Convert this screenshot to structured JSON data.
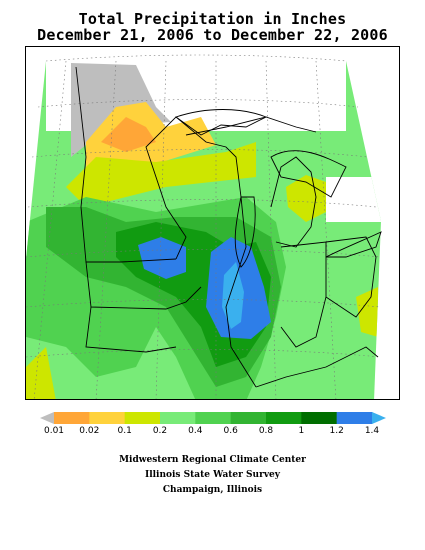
{
  "title_line1": "Total Precipitation in Inches",
  "title_line2": "December 21, 2006 to December 22, 2006",
  "legend": {
    "labels": [
      "0.01",
      "0.02",
      "0.1",
      "0.2",
      "0.4",
      "0.6",
      "0.8",
      "1",
      "1.2",
      "1.4"
    ],
    "colors": [
      "#bebebe",
      "#ffa637",
      "#ffd23c",
      "#cde600",
      "#78eb78",
      "#50d250",
      "#32b432",
      "#119b11",
      "#006e00",
      "#2e7ee8",
      "#3ab0ee"
    ]
  },
  "credits": {
    "line1": "Midwestern Regional Climate Center",
    "line2": "Illinois State Water Survey",
    "line3": "Champaign, Illinois"
  }
}
